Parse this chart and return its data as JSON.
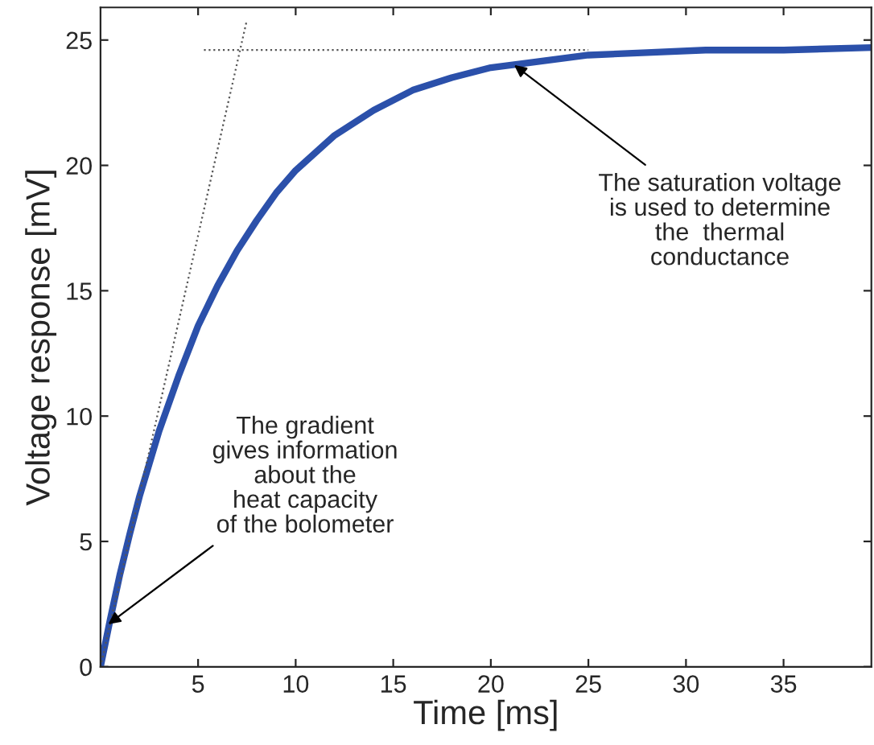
{
  "chart_data": {
    "type": "line",
    "xlabel": "Time [ms]",
    "ylabel": "Voltage response [mV]",
    "xlim": [
      0,
      39.5
    ],
    "ylim": [
      0,
      26.3
    ],
    "xticks": [
      5,
      10,
      15,
      20,
      25,
      30,
      35
    ],
    "yticks": [
      0,
      5,
      10,
      15,
      20,
      25
    ],
    "grid": false,
    "legend": false,
    "series": [
      {
        "color": "#2b50aa",
        "line_style": "solid",
        "x": [
          0,
          0.5,
          1,
          1.5,
          2,
          3,
          4,
          5,
          6,
          7,
          8,
          9,
          10,
          12,
          14,
          16,
          18,
          20,
          22,
          25,
          28,
          31,
          35,
          39.5
        ],
        "values": [
          0,
          1.9,
          3.7,
          5.3,
          6.8,
          9.4,
          11.6,
          13.6,
          15.2,
          16.6,
          17.8,
          18.9,
          19.8,
          21.2,
          22.2,
          23.0,
          23.5,
          23.9,
          24.1,
          24.4,
          24.5,
          24.6,
          24.6,
          24.7
        ]
      },
      {
        "color": "#555555",
        "line_style": "dotted",
        "x": [
          0,
          7.5
        ],
        "values": [
          0,
          25.8
        ]
      },
      {
        "color": "#555555",
        "line_style": "dotted",
        "x": [
          5.3,
          25
        ],
        "values": [
          24.6,
          24.6
        ]
      }
    ],
    "annotations": [
      {
        "text": "The gradient\ngives information\nabout the\nheat capacity\nof the bolometer",
        "x": 0.4,
        "y": 1.7
      },
      {
        "text": "The saturation voltage\nis used to determine\nthe  thermal\nconductance",
        "x": 21.2,
        "y": 24.0
      }
    ]
  }
}
